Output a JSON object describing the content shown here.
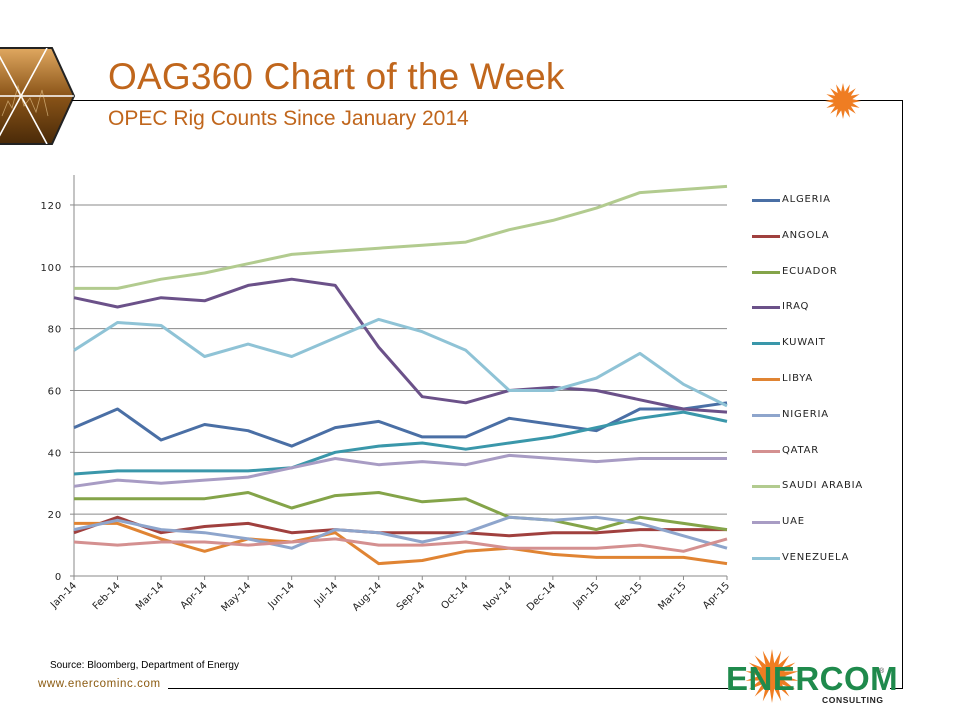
{
  "header": {
    "title": "OAG360 Chart of the Week",
    "subtitle": "OPEC Rig Counts Since January 2014"
  },
  "footer": {
    "source": "Source: Bloomberg, Department of Energy",
    "website": "www.enercominc.com",
    "brand_name": "ENERCOM",
    "brand_tagline": "CONSULTING",
    "brand_registered": "®"
  },
  "colors": {
    "title": "#c0661c",
    "brand_green": "#1f8a4c",
    "brand_orange": "#ef7d22"
  },
  "chart_data": {
    "type": "line",
    "title": "OPEC Rig Counts Since January 2014",
    "xlabel": "",
    "ylabel": "",
    "ylim": [
      0,
      130
    ],
    "yticks": [
      0,
      20,
      40,
      60,
      80,
      100,
      120
    ],
    "grid": true,
    "legend_position": "right",
    "x": [
      "Jan-14",
      "Feb-14",
      "Mar-14",
      "Apr-14",
      "May-14",
      "Jun-14",
      "Jul-14",
      "Aug-14",
      "Sep-14",
      "Oct-14",
      "Nov-14",
      "Dec-14",
      "Jan-15",
      "Feb-15",
      "Mar-15",
      "Apr-15"
    ],
    "series": [
      {
        "name": "ALGERIA",
        "color": "#4a6fa5",
        "values": [
          48,
          54,
          44,
          49,
          47,
          42,
          48,
          50,
          45,
          45,
          51,
          49,
          47,
          54,
          54,
          56
        ]
      },
      {
        "name": "ANGOLA",
        "color": "#a0403e",
        "values": [
          14,
          19,
          14,
          16,
          17,
          14,
          15,
          14,
          14,
          14,
          13,
          14,
          14,
          15,
          15,
          15
        ]
      },
      {
        "name": "ECUADOR",
        "color": "#84a449",
        "values": [
          25,
          25,
          25,
          25,
          27,
          22,
          26,
          27,
          24,
          25,
          19,
          18,
          15,
          19,
          17,
          15
        ]
      },
      {
        "name": "IRAQ",
        "color": "#6b5189",
        "values": [
          90,
          87,
          90,
          89,
          94,
          96,
          94,
          74,
          58,
          56,
          60,
          61,
          60,
          57,
          54,
          53
        ]
      },
      {
        "name": "KUWAIT",
        "color": "#3a97aa",
        "values": [
          33,
          34,
          34,
          34,
          34,
          35,
          40,
          42,
          43,
          41,
          43,
          45,
          48,
          51,
          53,
          50
        ]
      },
      {
        "name": "LIBYA",
        "color": "#e08433",
        "values": [
          17,
          17,
          12,
          8,
          12,
          11,
          14,
          4,
          5,
          8,
          9,
          7,
          6,
          6,
          6,
          4
        ]
      },
      {
        "name": "NIGERIA",
        "color": "#8ea5cc",
        "values": [
          15,
          18,
          15,
          14,
          12,
          9,
          15,
          14,
          11,
          14,
          19,
          18,
          19,
          17,
          13,
          9
        ]
      },
      {
        "name": "QATAR",
        "color": "#d49090",
        "values": [
          11,
          10,
          11,
          11,
          10,
          11,
          12,
          10,
          10,
          11,
          9,
          9,
          9,
          10,
          8,
          12
        ]
      },
      {
        "name": "SAUDI ARABIA",
        "color": "#b2cb8f",
        "values": [
          93,
          93,
          96,
          98,
          101,
          104,
          105,
          106,
          107,
          108,
          112,
          115,
          119,
          124,
          125,
          126
        ]
      },
      {
        "name": "UAE",
        "color": "#a89cc4",
        "values": [
          29,
          31,
          30,
          31,
          32,
          35,
          38,
          36,
          37,
          36,
          39,
          38,
          37,
          38,
          38,
          38
        ]
      },
      {
        "name": "VENEZUELA",
        "color": "#8fc3d6",
        "values": [
          73,
          82,
          81,
          71,
          75,
          71,
          77,
          83,
          79,
          73,
          60,
          60,
          64,
          72,
          62,
          55
        ]
      }
    ]
  }
}
